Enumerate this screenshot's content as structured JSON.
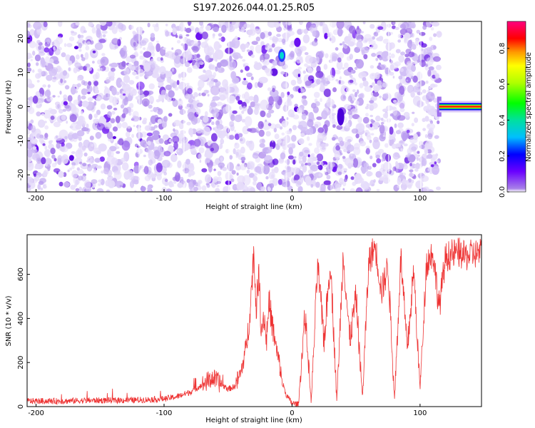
{
  "figure_title": "S197.2026.044.01.25.R05",
  "chart_data": [
    {
      "type": "heatmap",
      "name": "spectrogram",
      "title": "S197.2026.044.01.25.R05",
      "xlabel": "Height of straight line (km)",
      "ylabel": "Frequency (Hz)",
      "xlim": [
        -207,
        148
      ],
      "ylim": [
        -25,
        25
      ],
      "xticks": [
        -200,
        -100,
        0,
        100
      ],
      "xticklabels": [
        "-200",
        "-100",
        "0",
        "100"
      ],
      "yticks": [
        -20,
        -10,
        0,
        10,
        20
      ],
      "yticklabels": [
        "-20",
        "-10",
        "0",
        "10",
        "20"
      ],
      "noise_region_x": [
        -207,
        115
      ],
      "noise_amplitude_range": [
        0.05,
        0.28
      ],
      "features": [
        {
          "x": -8,
          "y": 15,
          "amplitude": 0.35
        },
        {
          "x": 38,
          "y": -3,
          "amplitude": 0.25
        }
      ],
      "carrier_line": {
        "x_start": 115,
        "x_end": 148,
        "y": 0,
        "amplitude": 0.95
      },
      "colorbar": {
        "label": "Normalized spectral amplitude",
        "range": [
          0,
          0.95
        ],
        "ticks": [
          0.0,
          0.2,
          0.4,
          0.6,
          0.8
        ],
        "ticklabels": [
          "0.0",
          "0.2",
          "0.4",
          "0.6",
          "0.8"
        ],
        "colormap": "rainbow (purple-blue-cyan-green-yellow-orange-red-magenta)"
      }
    },
    {
      "type": "line",
      "name": "snr",
      "xlabel": "Height of straight line (km)",
      "ylabel": "SNR (10 * v/v)",
      "xlim": [
        -207,
        148
      ],
      "ylim": [
        0,
        780
      ],
      "xticks": [
        -200,
        -100,
        0,
        100
      ],
      "xticklabels": [
        "-200",
        "-100",
        "0",
        "100"
      ],
      "yticks": [
        0,
        200,
        400,
        600
      ],
      "yticklabels": [
        "0",
        "200",
        "400",
        "600"
      ],
      "color": "#ee3333",
      "series": [
        {
          "name": "SNR",
          "x": [
            -207,
            -180,
            -160,
            -140,
            -120,
            -100,
            -90,
            -80,
            -70,
            -62,
            -55,
            -50,
            -45,
            -40,
            -35,
            -32,
            -30,
            -28,
            -26,
            -24,
            -22,
            -20,
            -18,
            -15,
            -12,
            -10,
            -8,
            -5,
            -2,
            0,
            5,
            10,
            15,
            20,
            25,
            30,
            35,
            40,
            45,
            50,
            55,
            60,
            65,
            70,
            75,
            80,
            85,
            90,
            95,
            100,
            105,
            110,
            115,
            120,
            125,
            130,
            135,
            140,
            148
          ],
          "y": [
            25,
            25,
            28,
            28,
            30,
            35,
            45,
            65,
            100,
            130,
            100,
            80,
            90,
            150,
            300,
            500,
            700,
            450,
            600,
            350,
            420,
            300,
            480,
            350,
            250,
            200,
            120,
            60,
            30,
            15,
            10,
            420,
            20,
            640,
            300,
            660,
            25,
            700,
            300,
            500,
            40,
            660,
            730,
            520,
            640,
            30,
            680,
            250,
            620,
            80,
            650,
            700,
            450,
            680,
            690,
            700,
            680,
            690,
            700
          ]
        }
      ]
    }
  ]
}
